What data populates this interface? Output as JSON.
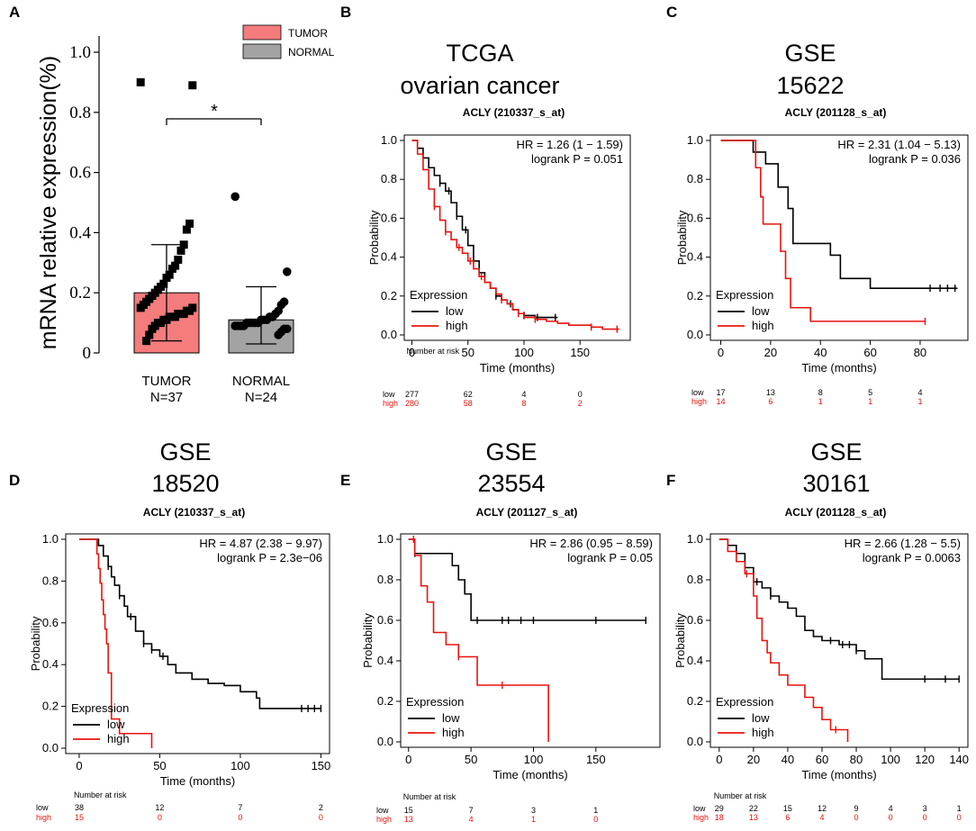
{
  "colors": {
    "low": "#000000",
    "high": "#e8140e",
    "tumor_bar": "#f47c7c",
    "normal_bar": "#a3a3a3"
  },
  "chart_data": [
    {
      "panel": "A",
      "type": "bar",
      "ylabel": "mRNA relative expression(%)",
      "ylim": [
        0,
        1.0
      ],
      "yticks": [
        "0",
        "0.2",
        "0.4",
        "0.6",
        "0.8",
        "1.0"
      ],
      "categories": [
        {
          "name": "TUMOR",
          "n_label": "N=37",
          "mean": 0.2,
          "sd_upper": 0.36,
          "sd_lower": 0.04
        },
        {
          "name": "NORMAL",
          "n_label": "N=24",
          "mean": 0.11,
          "sd_upper": 0.22,
          "sd_lower": 0.03
        }
      ],
      "legend": [
        "TUMOR",
        "NORMAL"
      ],
      "significance": "*",
      "points": {
        "TUMOR": [
          0.9,
          0.89,
          0.43,
          0.41,
          0.36,
          0.34,
          0.31,
          0.29,
          0.28,
          0.26,
          0.25,
          0.23,
          0.22,
          0.21,
          0.2,
          0.19,
          0.18,
          0.17,
          0.16,
          0.15,
          0.15,
          0.14,
          0.14,
          0.13,
          0.13,
          0.13,
          0.12,
          0.12,
          0.12,
          0.11,
          0.11,
          0.1,
          0.1,
          0.09,
          0.08,
          0.06,
          0.04
        ],
        "NORMAL": [
          0.52,
          0.27,
          0.17,
          0.16,
          0.14,
          0.13,
          0.12,
          0.12,
          0.11,
          0.11,
          0.11,
          0.1,
          0.1,
          0.1,
          0.1,
          0.1,
          0.09,
          0.09,
          0.09,
          0.09,
          0.08,
          0.08,
          0.07,
          0.06
        ]
      }
    },
    {
      "panel": "B",
      "type": "line",
      "title_lines": [
        "TCGA",
        "ovarian cancer"
      ],
      "subtitle": "ACLY (210337_s_at)",
      "hr": "HR = 1.26 (1 − 1.59)",
      "logrank": "logrank P = 0.051",
      "xlabel": "Time (months)",
      "ylabel": "Probability",
      "xlim": [
        -2,
        190
      ],
      "xticks": [
        0,
        50,
        100,
        150
      ],
      "ylim": [
        0,
        1
      ],
      "yticks": [
        "0.0",
        "0.2",
        "0.4",
        "0.6",
        "0.8",
        "1.0"
      ],
      "legend_title": "Expression",
      "legend": [
        "low",
        "high"
      ],
      "series": [
        {
          "name": "low",
          "x": [
            0,
            5,
            10,
            15,
            20,
            25,
            30,
            35,
            40,
            45,
            50,
            55,
            60,
            65,
            70,
            75,
            80,
            85,
            90,
            95,
            100,
            105,
            110,
            115,
            120,
            125,
            130
          ],
          "y": [
            1.0,
            0.96,
            0.91,
            0.86,
            0.82,
            0.78,
            0.74,
            0.68,
            0.61,
            0.54,
            0.46,
            0.38,
            0.32,
            0.27,
            0.24,
            0.2,
            0.18,
            0.16,
            0.13,
            0.11,
            0.1,
            0.1,
            0.09,
            0.09,
            0.09,
            0.09,
            0.09
          ],
          "censor_x": [
            25,
            33,
            40,
            48,
            60,
            75,
            88,
            100,
            112,
            128
          ]
        },
        {
          "name": "high",
          "x": [
            0,
            5,
            10,
            15,
            20,
            25,
            30,
            35,
            40,
            45,
            50,
            55,
            60,
            65,
            70,
            75,
            80,
            85,
            90,
            95,
            100,
            110,
            120,
            130,
            140,
            150,
            160,
            170,
            180,
            185
          ],
          "y": [
            1.0,
            0.93,
            0.85,
            0.75,
            0.66,
            0.59,
            0.53,
            0.49,
            0.45,
            0.42,
            0.38,
            0.34,
            0.3,
            0.27,
            0.24,
            0.21,
            0.18,
            0.16,
            0.13,
            0.11,
            0.09,
            0.08,
            0.07,
            0.06,
            0.05,
            0.05,
            0.04,
            0.03,
            0.03,
            0.03
          ],
          "censor_x": [
            20,
            30,
            42,
            52,
            62,
            80,
            95,
            110,
            160,
            183
          ]
        }
      ],
      "risk_title": "Number at risk",
      "risk": {
        "low": [
          "277",
          "62",
          "4",
          "0"
        ],
        "high": [
          "280",
          "58",
          "8",
          "2"
        ]
      }
    },
    {
      "panel": "C",
      "type": "line",
      "title_lines": [
        "GSE",
        "15622"
      ],
      "subtitle": "ACLY (201128_s_at)",
      "hr": "HR = 2.31 (1.04 − 5.13)",
      "logrank": "logrank P = 0.036",
      "xlabel": "Time (months)",
      "ylabel": "Probability",
      "xlim": [
        -2,
        97
      ],
      "xticks": [
        0,
        20,
        40,
        60,
        80
      ],
      "ylim": [
        0,
        1
      ],
      "yticks": [
        "0.0",
        "0.2",
        "0.4",
        "0.6",
        "0.8",
        "1.0"
      ],
      "legend_title": "Expression",
      "legend": [
        "low",
        "high"
      ],
      "series": [
        {
          "name": "low",
          "x": [
            0,
            12,
            13,
            18,
            23,
            27,
            29,
            44,
            48,
            60,
            95
          ],
          "y": [
            1.0,
            1.0,
            0.94,
            0.88,
            0.76,
            0.65,
            0.47,
            0.41,
            0.29,
            0.24,
            0.24
          ],
          "censor_x": [
            84,
            88,
            91,
            94
          ]
        },
        {
          "name": "high",
          "x": [
            0,
            12,
            14,
            16,
            17,
            24,
            26,
            28,
            36,
            82
          ],
          "y": [
            1.0,
            1.0,
            0.86,
            0.71,
            0.57,
            0.43,
            0.29,
            0.14,
            0.07,
            0.07
          ],
          "censor_x": [
            82
          ]
        }
      ],
      "risk_title": "",
      "risk": {
        "low": [
          "17",
          "13",
          "8",
          "5",
          "4"
        ],
        "high": [
          "14",
          "6",
          "1",
          "1",
          "1"
        ]
      }
    },
    {
      "panel": "D",
      "type": "line",
      "title_lines": [
        "GSE",
        "18520"
      ],
      "subtitle": "ACLY (210337_s_at)",
      "hr": "HR = 4.87 (2.38 − 9.97)",
      "logrank": "logrank P = 2.3e−06",
      "xlabel": "Time (months)",
      "ylabel": "Probability",
      "xlim": [
        -5,
        152
      ],
      "xticks": [
        0,
        50,
        100,
        150
      ],
      "ylim": [
        0,
        1
      ],
      "yticks": [
        "0.0",
        "0.2",
        "0.4",
        "0.6",
        "0.8",
        "1.0"
      ],
      "legend_title": "Expression",
      "legend": [
        "low",
        "high"
      ],
      "series": [
        {
          "name": "low",
          "x": [
            0,
            10,
            12,
            15,
            18,
            20,
            22,
            25,
            28,
            30,
            35,
            40,
            45,
            50,
            55,
            60,
            70,
            80,
            90,
            100,
            110,
            112,
            120,
            130,
            140,
            150
          ],
          "y": [
            1.0,
            1.0,
            0.97,
            0.92,
            0.87,
            0.82,
            0.78,
            0.73,
            0.68,
            0.63,
            0.56,
            0.5,
            0.47,
            0.44,
            0.4,
            0.36,
            0.33,
            0.31,
            0.3,
            0.27,
            0.24,
            0.19,
            0.19,
            0.19,
            0.19,
            0.19
          ],
          "censor_x": [
            18,
            25,
            32,
            40,
            45,
            52,
            138,
            142,
            146,
            150
          ]
        },
        {
          "name": "high",
          "x": [
            0,
            10,
            11,
            12,
            13,
            14,
            15,
            16,
            17,
            18,
            20,
            25,
            30,
            35,
            45
          ],
          "y": [
            1.0,
            1.0,
            0.93,
            0.86,
            0.79,
            0.71,
            0.64,
            0.57,
            0.5,
            0.36,
            0.14,
            0.07,
            0.07,
            0.07,
            0.0
          ],
          "censor_x": []
        }
      ],
      "risk_title": "Number at risk",
      "risk": {
        "low": [
          "38",
          "12",
          "7",
          "2"
        ],
        "high": [
          "15",
          "0",
          "0",
          "0"
        ]
      }
    },
    {
      "panel": "E",
      "type": "line",
      "title_lines": [
        "GSE",
        "23554"
      ],
      "subtitle": "ACLY (201127_s_at)",
      "hr": "HR = 2.86 (0.95 − 8.59)",
      "logrank": "logrank P = 0.05",
      "xlabel": "Time (months)",
      "ylabel": "Probability",
      "xlim": [
        -2,
        197
      ],
      "xticks": [
        0,
        50,
        100,
        150
      ],
      "ylim": [
        0,
        1
      ],
      "yticks": [
        "0.0",
        "0.2",
        "0.4",
        "0.6",
        "0.8",
        "1.0"
      ],
      "legend_title": "Expression",
      "legend": [
        "low",
        "high"
      ],
      "series": [
        {
          "name": "low",
          "x": [
            0,
            5,
            10,
            35,
            40,
            45,
            50,
            60,
            190
          ],
          "y": [
            1.0,
            0.93,
            0.93,
            0.87,
            0.8,
            0.73,
            0.6,
            0.6,
            0.6
          ],
          "censor_x": [
            5,
            55,
            75,
            80,
            90,
            100,
            150,
            190
          ]
        },
        {
          "name": "high",
          "x": [
            0,
            5,
            10,
            15,
            20,
            30,
            40,
            55,
            110,
            112
          ],
          "y": [
            1.0,
            0.92,
            0.77,
            0.69,
            0.54,
            0.48,
            0.42,
            0.28,
            0.28,
            0.0
          ],
          "censor_x": [
            4,
            40,
            75
          ]
        }
      ],
      "risk_title": "Number at risk",
      "risk": {
        "low": [
          "15",
          "7",
          "3",
          "1"
        ],
        "high": [
          "13",
          "4",
          "1",
          "0"
        ]
      }
    },
    {
      "panel": "F",
      "type": "line",
      "title_lines": [
        "GSE",
        "30161"
      ],
      "subtitle": "ACLY (201128_s_at)",
      "hr": "HR = 2.66 (1.28 − 5.5)",
      "logrank": "logrank P = 0.0063",
      "xlabel": "Time (months)",
      "ylabel": "Probability",
      "xlim": [
        -2,
        142
      ],
      "xticks": [
        0,
        20,
        40,
        60,
        80,
        100,
        120,
        140
      ],
      "ylim": [
        0,
        1
      ],
      "yticks": [
        "0.0",
        "0.2",
        "0.4",
        "0.6",
        "0.8",
        "1.0"
      ],
      "legend_title": "Expression",
      "legend": [
        "low",
        "high"
      ],
      "series": [
        {
          "name": "low",
          "x": [
            0,
            5,
            10,
            15,
            20,
            25,
            30,
            35,
            40,
            45,
            50,
            55,
            60,
            70,
            80,
            85,
            95,
            140
          ],
          "y": [
            1.0,
            0.97,
            0.93,
            0.86,
            0.79,
            0.76,
            0.72,
            0.69,
            0.66,
            0.62,
            0.55,
            0.52,
            0.5,
            0.48,
            0.45,
            0.41,
            0.31,
            0.31
          ],
          "censor_x": [
            22,
            30,
            65,
            72,
            76,
            80,
            120,
            132,
            140
          ]
        },
        {
          "name": "high",
          "x": [
            0,
            5,
            10,
            15,
            20,
            22,
            25,
            28,
            30,
            35,
            40,
            50,
            55,
            60,
            65,
            70,
            75
          ],
          "y": [
            1.0,
            0.94,
            0.89,
            0.83,
            0.72,
            0.61,
            0.5,
            0.44,
            0.39,
            0.33,
            0.28,
            0.22,
            0.17,
            0.11,
            0.06,
            0.06,
            0.0
          ],
          "censor_x": [
            16,
            68
          ]
        }
      ],
      "risk_title": "Number at risk",
      "risk": {
        "low": [
          "29",
          "22",
          "15",
          "12",
          "9",
          "4",
          "3",
          "1"
        ],
        "high": [
          "18",
          "13",
          "6",
          "4",
          "0",
          "0",
          "0",
          "0"
        ]
      }
    }
  ]
}
